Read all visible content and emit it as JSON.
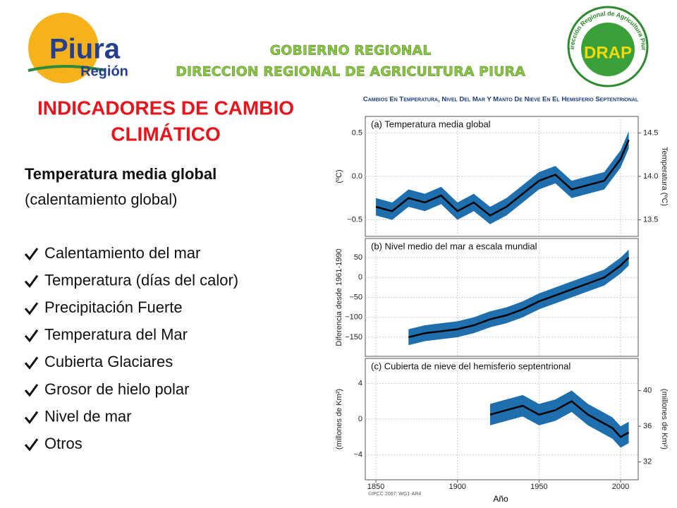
{
  "header": {
    "left_logo": {
      "name": "Piura",
      "sub": "Región"
    },
    "title_line1": "GOBIERNO REGIONAL",
    "title_line2": "DIRECCION REGIONAL DE AGRICULTURA PIURA",
    "right_logo": {
      "ring": "Dirección Regional de Agricultura Piura",
      "name": "DRAP"
    }
  },
  "slide": {
    "title_lines": [
      "INDICADORES DE CAMBIO",
      "CLIMÁTICO"
    ],
    "topic": "Temperatura media global",
    "topic_note": "(calentamiento global)",
    "items": [
      "Calentamiento del mar",
      "Temperatura (días del calor)",
      "Precipitación Fuerte",
      "Temperatura del Mar",
      "Cubierta Glaciares",
      "Grosor de hielo polar",
      "Nivel de mar",
      "Otros"
    ]
  },
  "chart_data": {
    "type": "line",
    "title": "Cambios En Temperatura, Nivel Del Mar Y Manto De Nieve En El Hemisferio Septentrional",
    "xlabel": "Año",
    "credit": "©IPCC 2007: WG1-AR4",
    "xlim": [
      1843.5,
      2010.8
    ],
    "xticks": [
      1850,
      1900,
      1950,
      2000
    ],
    "panels": [
      {
        "title": "(a) Temperatura media global",
        "ylabel": "(ºC)",
        "y2label": "Temperatura (ºC)",
        "ylim": [
          -0.69,
          0.69
        ],
        "yticks": [
          {
            "value": 0.5,
            "label": "0.5"
          },
          {
            "value": 0,
            "label": "0.0"
          },
          {
            "value": -0.5,
            "label": "−0.5"
          }
        ],
        "y2lim": [
          13.31,
          14.69
        ],
        "y2ticks": [
          14.5,
          {
            "value": 14,
            "label": "14.0"
          },
          13.5
        ],
        "x": [
          1850,
          1860,
          1870,
          1880,
          1890,
          1900,
          1910,
          1920,
          1930,
          1940,
          1950,
          1960,
          1970,
          1980,
          1990,
          2000,
          2005
        ],
        "values": [
          -0.35,
          -0.4,
          -0.25,
          -0.3,
          -0.22,
          -0.4,
          -0.3,
          -0.45,
          -0.35,
          -0.2,
          -0.05,
          0.02,
          -0.15,
          -0.1,
          -0.05,
          0.2,
          0.42
        ],
        "uncertainty": 0.1,
        "color": "#000000",
        "band_color": "#1f6fae"
      },
      {
        "title": "(b) Nivel medio del mar a escala mundial",
        "ylabel": "Diferencia desde 1961-1990",
        "ylim": [
          -198,
          98
        ],
        "yticks": [
          50,
          0,
          {
            "value": -50,
            "label": "−50"
          },
          {
            "value": -100,
            "label": "−100"
          },
          {
            "value": -150,
            "label": "−150"
          }
        ],
        "x": [
          1870,
          1880,
          1890,
          1900,
          1910,
          1920,
          1930,
          1940,
          1950,
          1960,
          1970,
          1980,
          1990,
          2000,
          2005
        ],
        "values": [
          -150,
          -140,
          -135,
          -130,
          -120,
          -105,
          -95,
          -80,
          -60,
          -45,
          -30,
          -15,
          0,
          30,
          50
        ],
        "uncertainty": 20,
        "color": "#000000",
        "band_color": "#1f6fae"
      },
      {
        "title": "(c) Cubierta de nieve del hemisferio septentrional",
        "ylabel": "(millones de Km²)",
        "y2label": "(millones de Km²)",
        "ylim": [
          -6.8,
          6.8
        ],
        "yticks": [
          4,
          0,
          {
            "value": -4,
            "label": "−4"
          }
        ],
        "y2lim": [
          30,
          43.6
        ],
        "y2ticks": [
          40,
          36,
          32
        ],
        "x": [
          1920,
          1930,
          1940,
          1950,
          1960,
          1970,
          1980,
          1985,
          1990,
          1995,
          2000,
          2005
        ],
        "values": [
          0.5,
          1,
          1.5,
          0.5,
          1,
          2,
          0.5,
          0,
          -0.5,
          -1,
          -2,
          -1.5
        ],
        "uncertainty": 1.2,
        "color": "#000000",
        "band_color": "#1f6fae"
      }
    ]
  }
}
